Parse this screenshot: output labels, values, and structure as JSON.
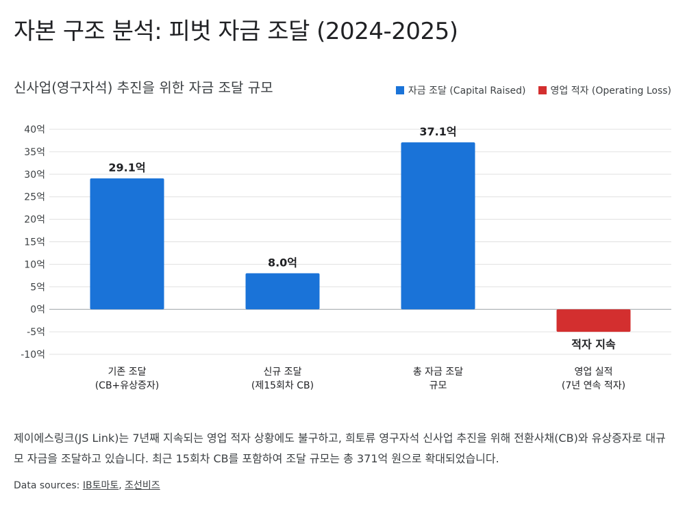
{
  "title": "자본 구조 분석: 피벗 자금 조달 (2024-2025)",
  "chart_data": {
    "type": "bar",
    "subtitle": "신사업(영구자석) 추진을 위한 자금 조달 규모",
    "ylabel": "",
    "xlabel": "",
    "ylim": [
      -10,
      40
    ],
    "yticks": [
      -10,
      -5,
      0,
      5,
      10,
      15,
      20,
      25,
      30,
      35,
      40
    ],
    "ytick_suffix": "억",
    "grid": true,
    "legend_position": "top-right",
    "legend": [
      {
        "label": "자금 조달 (Capital Raised)",
        "color": "#1a73d8"
      },
      {
        "label": "영업 적자 (Operating Loss)",
        "color": "#d32f2f"
      }
    ],
    "categories": [
      [
        "기존 조달",
        "(CB+유상증자)"
      ],
      [
        "신규 조달",
        "(제15회차 CB)"
      ],
      [
        "총 자금 조달",
        "규모"
      ],
      [
        "영업 실적",
        "(7년 연속 적자)"
      ]
    ],
    "values": [
      29.1,
      8.0,
      37.1,
      -5
    ],
    "bar_colors": [
      "#1a73d8",
      "#1a73d8",
      "#1a73d8",
      "#d32f2f"
    ],
    "data_labels": [
      "29.1억",
      "8.0억",
      "37.1억",
      "적자 지속"
    ]
  },
  "description": "제이에스링크(JS Link)는 7년째 지속되는 영업 적자 상황에도 불구하고, 희토류 영구자석 신사업 추진을 위해 전환사채(CB)와 유상증자로 대규모 자금을 조달하고 있습니다. 최근 15회차 CB를 포함하여 조달 규모는 총 371억 원으로 확대되었습니다.",
  "sources": {
    "prefix": "Data sources: ",
    "links": [
      "IB토마토",
      "조선비즈"
    ]
  }
}
